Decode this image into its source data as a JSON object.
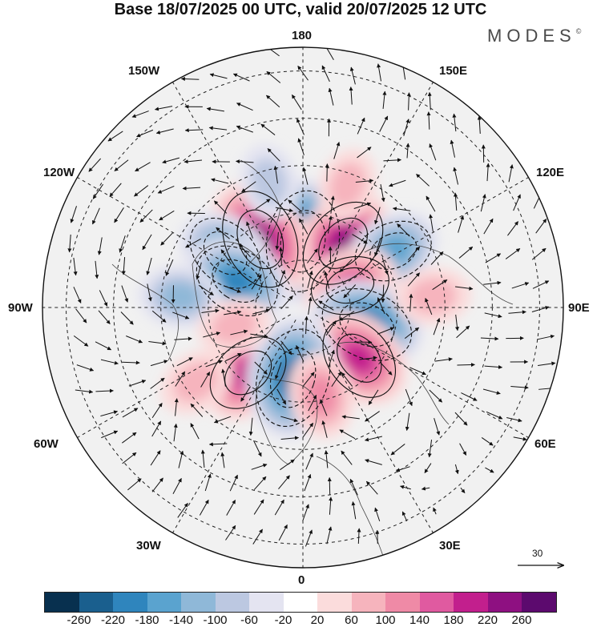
{
  "title": "Base 18/07/2025 00 UTC, valid 20/07/2025 12 UTC",
  "brand": {
    "text": "MODES",
    "mark": "©"
  },
  "longitude_labels": {
    "top": "180",
    "bottom": "0",
    "left": "90W",
    "right": "90E",
    "upper_left_1": "150W",
    "upper_left_2": "120W",
    "upper_right_1": "150E",
    "upper_right_2": "120E",
    "lower_left_1": "60W",
    "lower_left_2": "30W",
    "lower_right_1": "60E",
    "lower_right_2": "30E"
  },
  "reference_vector": {
    "label": "30",
    "icon": "arrow-right-icon"
  },
  "colorbar": {
    "colors": [
      "#08304f",
      "#1a5f8e",
      "#2f85bd",
      "#5aa3cf",
      "#8fb8d8",
      "#bcc8e1",
      "#e4e4f1",
      "#ffffff",
      "#fbdcdc",
      "#f6b4bd",
      "#ef8aa6",
      "#e05aa0",
      "#c21f8d",
      "#8e1081",
      "#5c0a6e"
    ],
    "ticks": [
      "-260",
      "-220",
      "-180",
      "-140",
      "-100",
      "-60",
      "-20",
      "20",
      "60",
      "100",
      "140",
      "180",
      "220",
      "260"
    ]
  },
  "anomaly_centers": [
    {
      "lon": 180,
      "colat": 28,
      "value": -240
    },
    {
      "lon": 148,
      "colat": 32,
      "value": 200
    },
    {
      "lon": -148,
      "colat": 34,
      "value": 230
    },
    {
      "lon": -125,
      "colat": 40,
      "value": -140
    },
    {
      "lon": -112,
      "colat": 30,
      "value": -170
    },
    {
      "lon": 122,
      "colat": 45,
      "value": -130
    },
    {
      "lon": 115,
      "colat": 22,
      "value": 130
    },
    {
      "lon": 75,
      "colat": 28,
      "value": -200
    },
    {
      "lon": 48,
      "colat": 32,
      "value": 170
    },
    {
      "lon": -40,
      "colat": 36,
      "value": 160
    },
    {
      "lon": -8,
      "colat": 30,
      "value": -230
    },
    {
      "lon": 12,
      "colat": 38,
      "value": 90
    },
    {
      "lon": -95,
      "colat": 52,
      "value": -80
    },
    {
      "lon": -75,
      "colat": 30,
      "value": 40
    },
    {
      "lon": 95,
      "colat": 55,
      "value": 50
    },
    {
      "lon": 160,
      "colat": 55,
      "value": 40
    },
    {
      "lon": -165,
      "colat": 55,
      "value": -50
    },
    {
      "lon": -55,
      "colat": 55,
      "value": 50
    }
  ]
}
